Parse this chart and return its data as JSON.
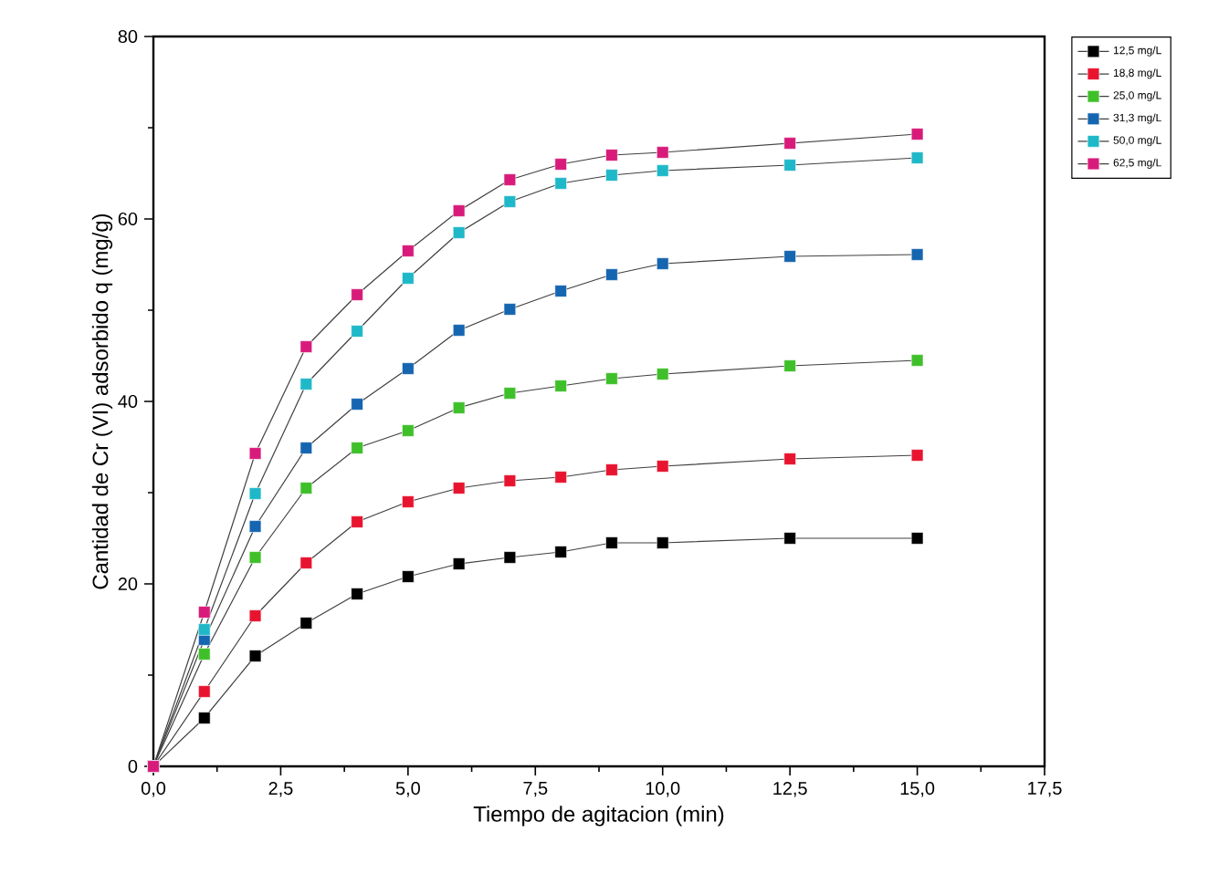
{
  "chart_data": {
    "type": "line",
    "xlabel": "Tiempo de agitacion (min)",
    "ylabel": "Cantidad de Cr (VI) adsorbido q (mg/g)",
    "x": [
      0,
      1,
      2,
      3,
      4,
      5,
      6,
      7,
      8,
      9,
      10,
      12.5,
      15
    ],
    "series": [
      {
        "name": "12,5 mg/L",
        "color": "#000000",
        "values": [
          0,
          5.3,
          12.1,
          15.7,
          18.9,
          20.8,
          22.2,
          22.9,
          23.5,
          24.5,
          24.5,
          25.0,
          25.0
        ]
      },
      {
        "name": "18,8 mg/L",
        "color": "#e8142f",
        "values": [
          0,
          8.2,
          16.5,
          22.3,
          26.8,
          29.0,
          30.5,
          31.3,
          31.7,
          32.5,
          32.9,
          33.7,
          34.1
        ]
      },
      {
        "name": "25,0 mg/L",
        "color": "#3fc02a",
        "values": [
          0,
          12.3,
          22.9,
          30.5,
          34.9,
          36.8,
          39.3,
          40.9,
          41.7,
          42.5,
          43.0,
          43.9,
          44.5
        ]
      },
      {
        "name": "31,3 mg/L",
        "color": "#1565b0",
        "values": [
          0,
          13.9,
          26.3,
          34.9,
          39.7,
          43.6,
          47.8,
          50.1,
          52.1,
          53.9,
          55.1,
          55.9,
          56.1
        ]
      },
      {
        "name": "50,0 mg/L",
        "color": "#1fb8c9",
        "values": [
          0,
          15.0,
          29.9,
          41.9,
          47.7,
          53.5,
          58.5,
          61.9,
          63.9,
          64.8,
          65.3,
          65.9,
          66.7
        ]
      },
      {
        "name": "62,5 mg/L",
        "color": "#d81b7a",
        "values": [
          0,
          16.9,
          34.3,
          46.0,
          51.7,
          56.5,
          60.9,
          64.3,
          66.0,
          67.0,
          67.3,
          68.3,
          69.3
        ]
      }
    ],
    "xlim": [
      0,
      17.5
    ],
    "ylim": [
      0,
      80
    ],
    "xticks": [
      {
        "value": 0,
        "label": "0,0"
      },
      {
        "value": 2.5,
        "label": "2,5"
      },
      {
        "value": 5,
        "label": "5,0"
      },
      {
        "value": 7.5,
        "label": "7,5"
      },
      {
        "value": 10,
        "label": "10,0"
      },
      {
        "value": 12.5,
        "label": "12,5"
      },
      {
        "value": 15,
        "label": "15,0"
      },
      {
        "value": 17.5,
        "label": "17,5"
      }
    ],
    "yticks": [
      0,
      20,
      40,
      60,
      80
    ],
    "legend": "top right",
    "marker": "square",
    "line_style": "solid",
    "grid": false
  }
}
